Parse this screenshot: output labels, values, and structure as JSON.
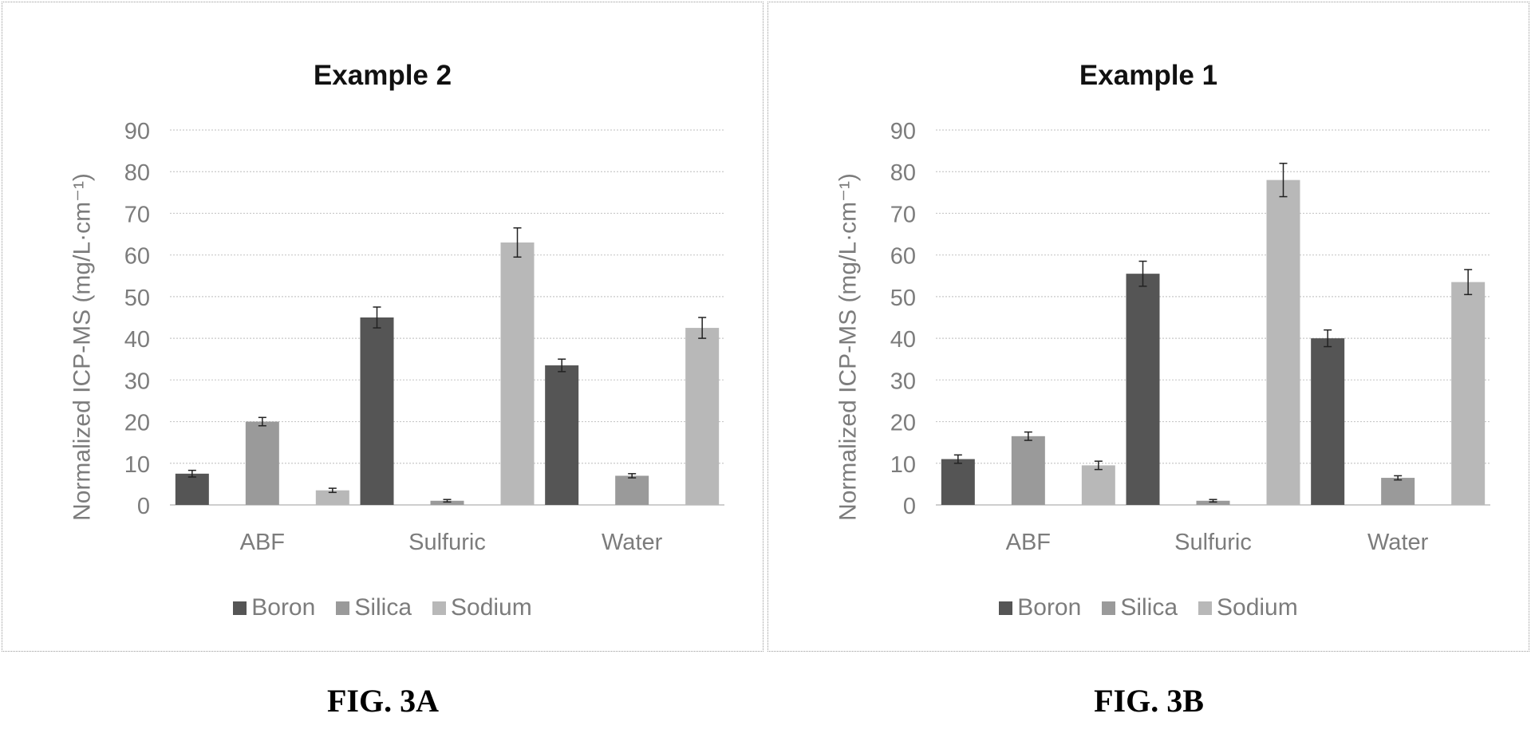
{
  "chart_data": [
    {
      "type": "bar",
      "title": "Example 2",
      "ylabel": "Normalized ICP-MS (mg/L·cm⁻¹)",
      "xlabel": "",
      "ylim": [
        0,
        90
      ],
      "yticks": [
        0,
        10,
        20,
        30,
        40,
        50,
        60,
        70,
        80,
        90
      ],
      "grid": true,
      "legend": "bottom",
      "categories": [
        "ABF",
        "Sulfuric",
        "Water"
      ],
      "series": [
        {
          "name": "Boron",
          "color": "#555555",
          "values": [
            7.5,
            45,
            33.5
          ],
          "errors": [
            0.8,
            2.5,
            1.5
          ]
        },
        {
          "name": "Silica",
          "color": "#9a9a9a",
          "values": [
            20,
            1,
            7
          ],
          "errors": [
            1,
            0.3,
            0.5
          ]
        },
        {
          "name": "Sodium",
          "color": "#b8b8b8",
          "values": [
            3.5,
            63,
            42.5
          ],
          "errors": [
            0.5,
            3.5,
            2.5
          ]
        }
      ],
      "caption": "FIG. 3A"
    },
    {
      "type": "bar",
      "title": "Example 1",
      "ylabel": "Normalized ICP-MS (mg/L·cm⁻¹)",
      "xlabel": "",
      "ylim": [
        0,
        90
      ],
      "yticks": [
        0,
        10,
        20,
        30,
        40,
        50,
        60,
        70,
        80,
        90
      ],
      "grid": true,
      "legend": "bottom",
      "categories": [
        "ABF",
        "Sulfuric",
        "Water"
      ],
      "series": [
        {
          "name": "Boron",
          "color": "#555555",
          "values": [
            11,
            55.5,
            40
          ],
          "errors": [
            1,
            3,
            2
          ]
        },
        {
          "name": "Silica",
          "color": "#9a9a9a",
          "values": [
            16.5,
            1,
            6.5
          ],
          "errors": [
            1,
            0.3,
            0.5
          ]
        },
        {
          "name": "Sodium",
          "color": "#b8b8b8",
          "values": [
            9.5,
            78,
            53.5
          ],
          "errors": [
            1,
            4,
            3
          ]
        }
      ],
      "caption": "FIG. 3B"
    }
  ]
}
